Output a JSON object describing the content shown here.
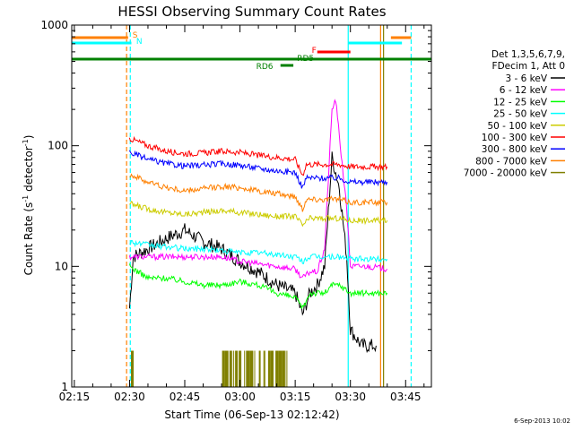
{
  "chart_data": {
    "type": "line",
    "title": "HESSI Observing Summary Count Rates",
    "xlabel": "Start Time (06-Sep-13 02:12:42)",
    "ylabel_main": "Count Rate (s",
    "ylabel_sup1": "-1",
    "ylabel_mid": " detector",
    "ylabel_sup2": "-1",
    "ylabel_end": ")",
    "yscale": "log",
    "ylim": [
      1,
      1000
    ],
    "xlim_minutes": [
      -0.7,
      97.0
    ],
    "x_tick_labels": [
      "02:15",
      "02:30",
      "02:45",
      "03:00",
      "03:15",
      "03:30",
      "03:45"
    ],
    "x_tick_minutes": [
      0,
      15,
      30,
      45,
      60,
      75,
      90
    ],
    "y_tick_labels": [
      "1",
      "10",
      "100",
      "1000"
    ],
    "y_tick_values": [
      1,
      10,
      100,
      1000
    ],
    "legend_title_1": "Det 1,3,5,6,7,9,",
    "legend_title_2": "FDecim 1, Att 0",
    "series": [
      {
        "name": "3 - 6 keV",
        "color": "#000000",
        "points": [
          [
            15,
            4.5
          ],
          [
            16,
            12
          ],
          [
            20,
            14
          ],
          [
            25,
            17
          ],
          [
            30,
            20
          ],
          [
            35,
            16
          ],
          [
            40,
            14
          ],
          [
            45,
            11
          ],
          [
            50,
            9
          ],
          [
            55,
            7
          ],
          [
            60,
            6
          ],
          [
            62,
            4
          ],
          [
            64,
            6
          ],
          [
            66,
            7
          ],
          [
            68,
            10
          ],
          [
            70,
            80
          ],
          [
            72,
            45
          ],
          [
            74,
            12
          ],
          [
            75,
            3
          ],
          [
            78,
            2.2
          ],
          [
            82,
            2.2
          ]
        ]
      },
      {
        "name": "6 - 12 keV",
        "color": "#ff00ff",
        "points": [
          [
            15,
            12
          ],
          [
            20,
            12
          ],
          [
            25,
            12
          ],
          [
            30,
            12
          ],
          [
            35,
            12
          ],
          [
            40,
            12
          ],
          [
            45,
            11
          ],
          [
            50,
            10.5
          ],
          [
            55,
            10
          ],
          [
            60,
            9.5
          ],
          [
            62,
            8
          ],
          [
            64,
            9
          ],
          [
            66,
            9
          ],
          [
            68,
            14
          ],
          [
            70,
            200
          ],
          [
            71,
            240
          ],
          [
            72,
            120
          ],
          [
            74,
            30
          ],
          [
            75,
            10
          ],
          [
            80,
            10
          ],
          [
            85,
            9.5
          ]
        ]
      },
      {
        "name": "12 - 25 keV",
        "color": "#00ff00",
        "points": [
          [
            15,
            10
          ],
          [
            20,
            8
          ],
          [
            25,
            8
          ],
          [
            30,
            7.5
          ],
          [
            35,
            7
          ],
          [
            40,
            7
          ],
          [
            45,
            7.5
          ],
          [
            50,
            7
          ],
          [
            55,
            6
          ],
          [
            60,
            5.5
          ],
          [
            62,
            4.5
          ],
          [
            64,
            6
          ],
          [
            68,
            6
          ],
          [
            70,
            7
          ],
          [
            72,
            7
          ],
          [
            75,
            6
          ],
          [
            80,
            6
          ],
          [
            85,
            6
          ]
        ]
      },
      {
        "name": "25 - 50 keV",
        "color": "#00ffff",
        "points": [
          [
            15,
            16
          ],
          [
            20,
            15
          ],
          [
            25,
            14.5
          ],
          [
            30,
            14
          ],
          [
            35,
            14
          ],
          [
            40,
            13.5
          ],
          [
            45,
            13
          ],
          [
            50,
            13
          ],
          [
            55,
            12.5
          ],
          [
            60,
            12
          ],
          [
            62,
            11
          ],
          [
            64,
            12
          ],
          [
            68,
            12
          ],
          [
            72,
            12
          ],
          [
            75,
            11.5
          ],
          [
            80,
            11.5
          ],
          [
            85,
            11.5
          ]
        ]
      },
      {
        "name": "50 - 100 keV",
        "color": "#cccc00",
        "points": [
          [
            15,
            33
          ],
          [
            20,
            30
          ],
          [
            25,
            28
          ],
          [
            30,
            27
          ],
          [
            35,
            28
          ],
          [
            40,
            29
          ],
          [
            45,
            28
          ],
          [
            50,
            27
          ],
          [
            55,
            26
          ],
          [
            60,
            26
          ],
          [
            62,
            22
          ],
          [
            64,
            25
          ],
          [
            68,
            25
          ],
          [
            72,
            25
          ],
          [
            75,
            24
          ],
          [
            80,
            24
          ],
          [
            85,
            24
          ]
        ]
      },
      {
        "name": "100 - 300 keV",
        "color": "#ff0000",
        "points": [
          [
            15,
            115
          ],
          [
            20,
            100
          ],
          [
            25,
            90
          ],
          [
            30,
            86
          ],
          [
            35,
            87
          ],
          [
            40,
            90
          ],
          [
            45,
            88
          ],
          [
            50,
            83
          ],
          [
            55,
            80
          ],
          [
            60,
            77
          ],
          [
            62,
            57
          ],
          [
            63,
            70
          ],
          [
            68,
            70
          ],
          [
            72,
            70
          ],
          [
            75,
            67
          ],
          [
            80,
            67
          ],
          [
            85,
            67
          ]
        ]
      },
      {
        "name": "300 - 800 keV",
        "color": "#0000ff",
        "points": [
          [
            15,
            88
          ],
          [
            20,
            77
          ],
          [
            25,
            71
          ],
          [
            30,
            68
          ],
          [
            35,
            69
          ],
          [
            40,
            71
          ],
          [
            45,
            69
          ],
          [
            50,
            65
          ],
          [
            55,
            62
          ],
          [
            60,
            60
          ],
          [
            62,
            45
          ],
          [
            63,
            54
          ],
          [
            68,
            54
          ],
          [
            72,
            54
          ],
          [
            75,
            50
          ],
          [
            80,
            50
          ],
          [
            85,
            50
          ]
        ]
      },
      {
        "name": "800 - 7000 keV",
        "color": "#ff8000",
        "points": [
          [
            15,
            58
          ],
          [
            20,
            50
          ],
          [
            25,
            45
          ],
          [
            30,
            42
          ],
          [
            35,
            44
          ],
          [
            40,
            46
          ],
          [
            45,
            45
          ],
          [
            50,
            42
          ],
          [
            55,
            40
          ],
          [
            60,
            38
          ],
          [
            62,
            30
          ],
          [
            63,
            36
          ],
          [
            68,
            36
          ],
          [
            72,
            36
          ],
          [
            75,
            34
          ],
          [
            80,
            34
          ],
          [
            85,
            34
          ]
        ]
      },
      {
        "name": "7000 - 20000 keV",
        "color": "#808000",
        "points": [
          [
            15,
            1
          ],
          [
            16,
            1
          ],
          [
            40,
            1
          ],
          [
            41,
            1
          ],
          [
            56,
            1
          ],
          [
            57,
            1
          ],
          [
            75,
            1
          ],
          [
            85,
            1
          ]
        ]
      }
    ],
    "annotations": [
      {
        "label": "S",
        "color": "#ff8000"
      },
      {
        "label": "N",
        "color": "#00ffff"
      },
      {
        "label": "F",
        "color": "#ff0000"
      },
      {
        "label": "RD5",
        "color": "#008000"
      },
      {
        "label": "RD6",
        "color": "#008000"
      }
    ],
    "timestamp": "6-Sep-2013 10:02"
  }
}
